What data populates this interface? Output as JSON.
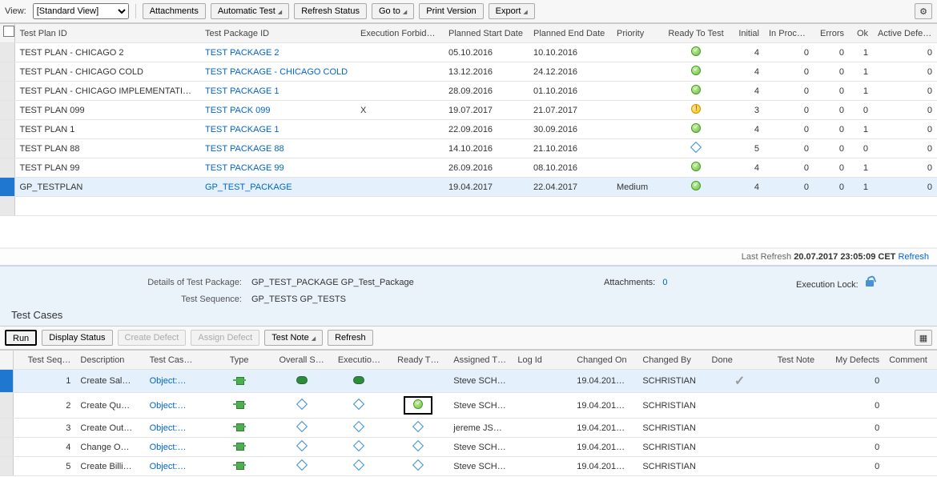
{
  "toolbar": {
    "view_label": "View:",
    "view_value": "[Standard View]",
    "attachments": "Attachments",
    "automatic_test": "Automatic Test",
    "refresh_status": "Refresh Status",
    "go_to": "Go to",
    "print_version": "Print Version",
    "export": "Export"
  },
  "columns": {
    "test_plan_id": "Test Plan ID",
    "test_package_id": "Test Package ID",
    "execution_forbidden": "Execution Forbidden",
    "planned_start": "Planned Start Date",
    "planned_end": "Planned End Date",
    "priority": "Priority",
    "ready_to_test": "Ready To Test",
    "initial": "Initial",
    "in_process": "In Process",
    "errors": "Errors",
    "ok": "Ok",
    "active_defects": "Active Defects"
  },
  "rows": [
    {
      "plan": "TEST PLAN - CHICAGO 2",
      "pkg": "TEST PACKAGE 2",
      "forbidden": "",
      "start": "05.10.2016",
      "end": "10.10.2016",
      "priority": "",
      "ready": "green",
      "initial": 4,
      "inprocess": 0,
      "errors": 0,
      "ok": 1,
      "defects": 0,
      "sel": false
    },
    {
      "plan": "TEST PLAN - CHICAGO COLD",
      "pkg": "TEST PACKAGE - CHICAGO COLD",
      "forbidden": "",
      "start": "13.12.2016",
      "end": "24.12.2016",
      "priority": "",
      "ready": "green",
      "initial": 4,
      "inprocess": 0,
      "errors": 0,
      "ok": 1,
      "defects": 0,
      "sel": false
    },
    {
      "plan": "TEST PLAN - CHICAGO IMPLEMENTATION",
      "pkg": "TEST PACKAGE 1",
      "forbidden": "",
      "start": "28.09.2016",
      "end": "01.10.2016",
      "priority": "",
      "ready": "green",
      "initial": 4,
      "inprocess": 0,
      "errors": 0,
      "ok": 1,
      "defects": 0,
      "sel": false
    },
    {
      "plan": "TEST PLAN 099",
      "pkg": "TEST PACK 099",
      "forbidden": "X",
      "start": "19.07.2017",
      "end": "21.07.2017",
      "priority": "",
      "ready": "warn",
      "initial": 3,
      "inprocess": 0,
      "errors": 0,
      "ok": 0,
      "defects": 0,
      "sel": false
    },
    {
      "plan": "TEST PLAN 1",
      "pkg": "TEST PACKAGE 1",
      "forbidden": "",
      "start": "22.09.2016",
      "end": "30.09.2016",
      "priority": "",
      "ready": "green",
      "initial": 4,
      "inprocess": 0,
      "errors": 0,
      "ok": 1,
      "defects": 0,
      "sel": false
    },
    {
      "plan": "TEST PLAN 88",
      "pkg": "TEST PACKAGE 88",
      "forbidden": "",
      "start": "14.10.2016",
      "end": "21.10.2016",
      "priority": "",
      "ready": "diamond",
      "initial": 5,
      "inprocess": 0,
      "errors": 0,
      "ok": 0,
      "defects": 0,
      "sel": false
    },
    {
      "plan": "TEST PLAN 99",
      "pkg": "TEST PACKAGE 99",
      "forbidden": "",
      "start": "26.09.2016",
      "end": "08.10.2016",
      "priority": "",
      "ready": "green",
      "initial": 4,
      "inprocess": 0,
      "errors": 0,
      "ok": 1,
      "defects": 0,
      "sel": false
    },
    {
      "plan": "GP_TESTPLAN",
      "pkg": "GP_TEST_PACKAGE",
      "forbidden": "",
      "start": "19.04.2017",
      "end": "22.04.2017",
      "priority": "Medium",
      "ready": "green",
      "initial": 4,
      "inprocess": 0,
      "errors": 0,
      "ok": 1,
      "defects": 0,
      "sel": true
    }
  ],
  "refresh": {
    "label": "Last Refresh",
    "value": "20.07.2017 23:05:09 CET",
    "link": "Refresh"
  },
  "details": {
    "pkg_label": "Details of Test Package:",
    "pkg_value": "GP_TEST_PACKAGE GP_Test_Package",
    "seq_label": "Test Sequence:",
    "seq_value": "GP_TESTS GP_TESTS",
    "attachments_label": "Attachments:",
    "attachments_value": "0",
    "lock_label": "Execution Lock:",
    "title": "Test Cases"
  },
  "toolbar2": {
    "run": "Run",
    "display_status": "Display Status",
    "create_defect": "Create Defect",
    "assign_defect": "Assign Defect",
    "test_note": "Test Note",
    "refresh": "Refresh"
  },
  "columns2": {
    "seq": "Test Seq…",
    "desc": "Description",
    "tcase": "Test Cas…",
    "type": "Type",
    "overall": "Overall S…",
    "exec": "Executio…",
    "ready": "Ready T…",
    "assigned": "Assigned T…",
    "logid": "Log Id",
    "changed_on": "Changed On",
    "changed_by": "Changed By",
    "done": "Done",
    "test_note": "Test Note",
    "my_defects": "My Defects",
    "comment": "Comment"
  },
  "rows2": [
    {
      "seq": 1,
      "desc": "Create Sal…",
      "tcase": "Object:…",
      "overall": "oval",
      "exec": "oval",
      "ready": "",
      "assigned": "Steve SCH…",
      "logid": "",
      "changed_on": "19.04.201…",
      "changed_by": "SCHRISTIAN",
      "done": true,
      "defects": 0,
      "sel": true,
      "ready_hl": false
    },
    {
      "seq": 2,
      "desc": "Create Qu…",
      "tcase": "Object:…",
      "overall": "diamond",
      "exec": "diamond",
      "ready": "green",
      "assigned": "Steve SCH…",
      "logid": "",
      "changed_on": "19.04.201…",
      "changed_by": "SCHRISTIAN",
      "done": false,
      "defects": 0,
      "sel": false,
      "ready_hl": true
    },
    {
      "seq": 3,
      "desc": "Create Out…",
      "tcase": "Object:…",
      "overall": "diamond",
      "exec": "diamond",
      "ready": "diamond",
      "assigned": "jereme JS…",
      "logid": "",
      "changed_on": "19.04.201…",
      "changed_by": "SCHRISTIAN",
      "done": false,
      "defects": 0,
      "sel": false,
      "ready_hl": false
    },
    {
      "seq": 4,
      "desc": "Change O…",
      "tcase": "Object:…",
      "overall": "diamond",
      "exec": "diamond",
      "ready": "diamond",
      "assigned": "Steve SCH…",
      "logid": "",
      "changed_on": "19.04.201…",
      "changed_by": "SCHRISTIAN",
      "done": false,
      "defects": 0,
      "sel": false,
      "ready_hl": false
    },
    {
      "seq": 5,
      "desc": "Create Billi…",
      "tcase": "Object:…",
      "overall": "diamond",
      "exec": "diamond",
      "ready": "diamond",
      "assigned": "Steve SCH…",
      "logid": "",
      "changed_on": "19.04.201…",
      "changed_by": "SCHRISTIAN",
      "done": false,
      "defects": 0,
      "sel": false,
      "ready_hl": false
    }
  ]
}
